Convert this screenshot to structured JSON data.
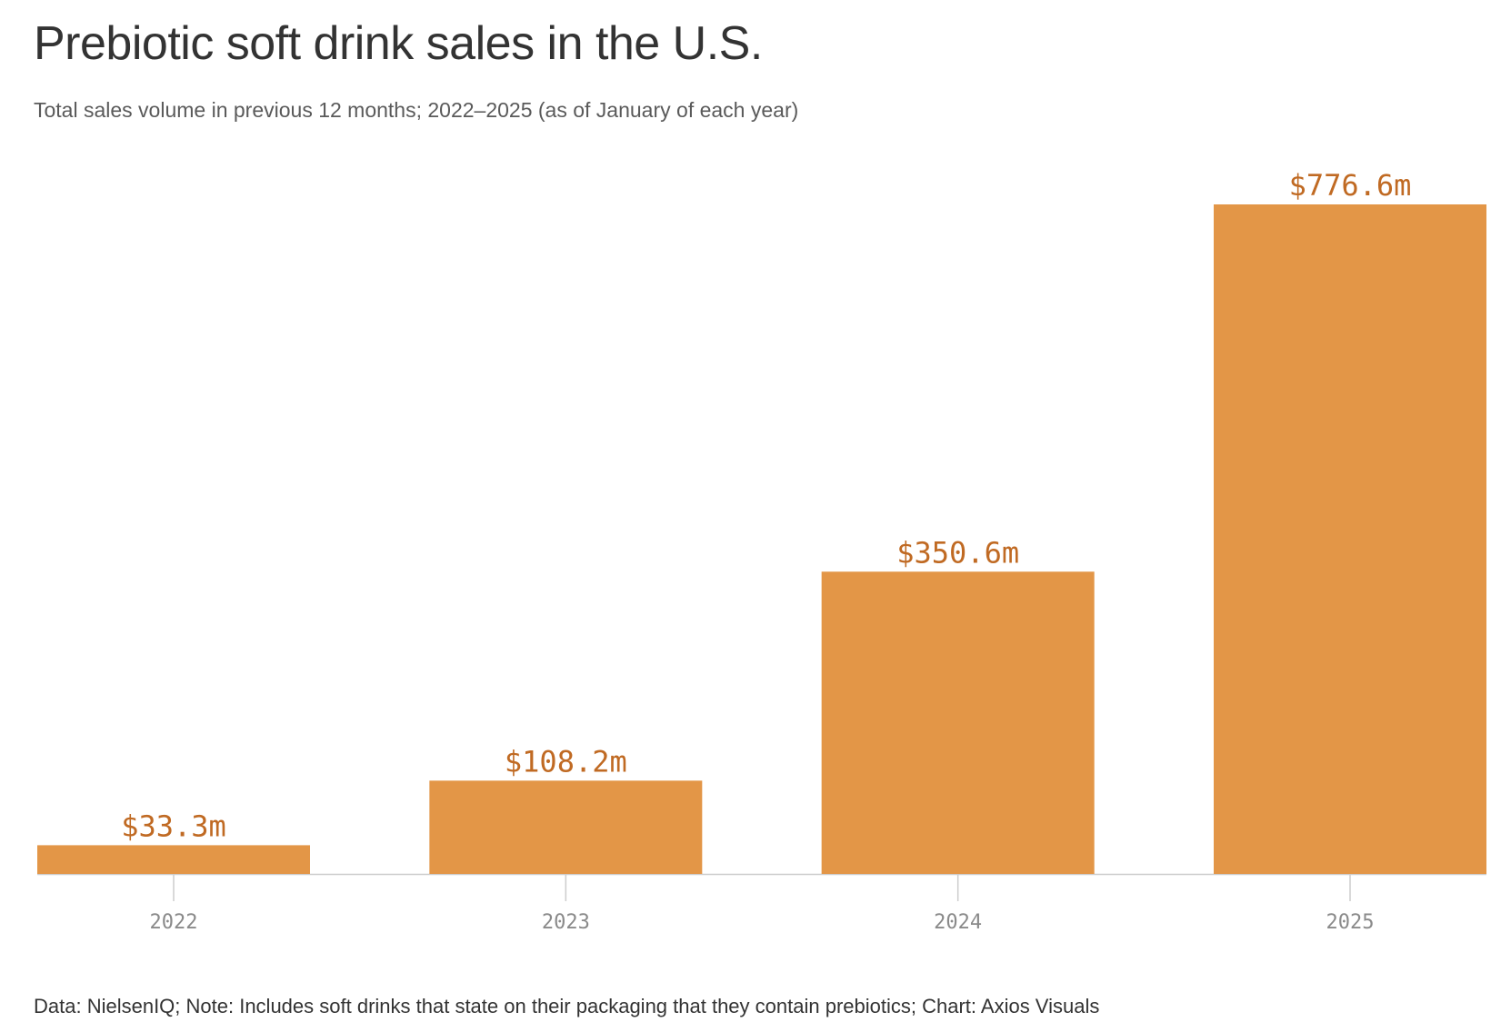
{
  "title": "Prebiotic soft drink sales in the U.S.",
  "subtitle": "Total sales volume in previous 12 months; 2022–2025 (as of January of each year)",
  "footer": "Data: NielsenIQ; Note: Includes soft drinks that state on their packaging that they contain prebiotics; Chart: Axios Visuals",
  "colors": {
    "bar": "#e39647",
    "label": "#c06a23",
    "axis": "#cccccc",
    "tick_label": "#8a8a8a"
  },
  "chart_data": {
    "type": "bar",
    "categories": [
      "2022",
      "2023",
      "2024",
      "2025"
    ],
    "values": [
      33.3,
      108.2,
      350.6,
      776.6
    ],
    "data_labels": [
      "$33.3m",
      "$108.2m",
      "$350.6m",
      "$776.6m"
    ],
    "ylim": [
      0,
      776.6
    ],
    "grid": false,
    "legend": "none"
  }
}
